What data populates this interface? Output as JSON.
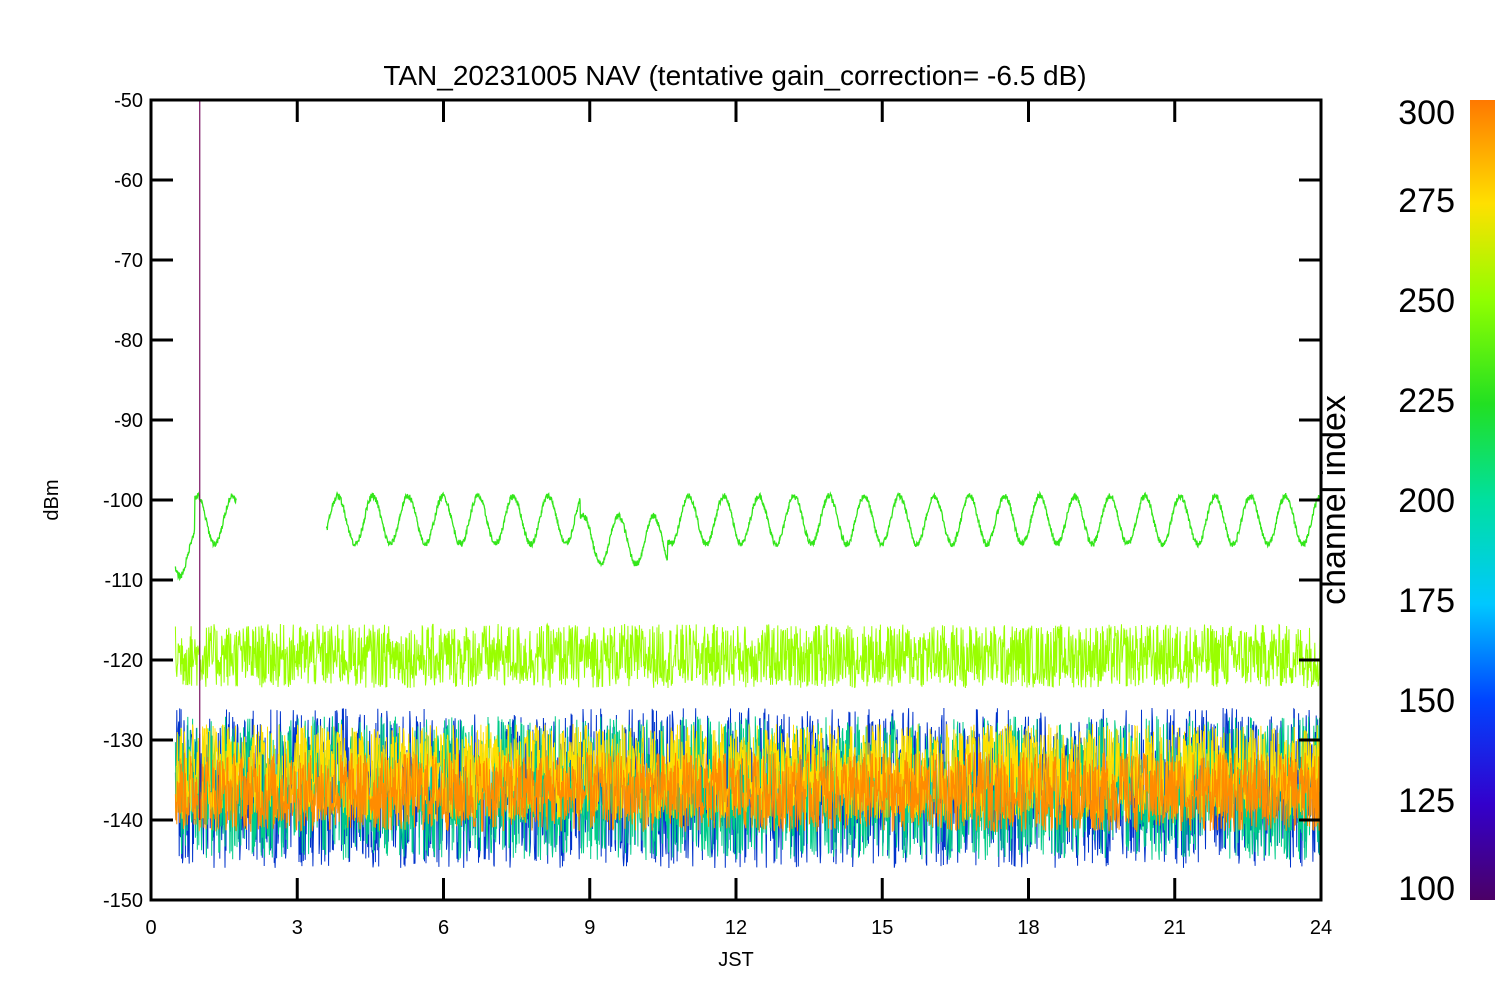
{
  "chart_data": {
    "type": "line",
    "title": "TAN_20231005 NAV (tentative gain_correction= -6.5 dB)",
    "xlabel": "JST",
    "ylabel": "dBm",
    "xlim": [
      0,
      24
    ],
    "ylim": [
      -150,
      -50
    ],
    "x_ticks": [
      "0",
      "3",
      "6",
      "9",
      "12",
      "15",
      "18",
      "21",
      "24"
    ],
    "y_ticks": [
      "-50",
      "-60",
      "-70",
      "-80",
      "-90",
      "-100",
      "-110",
      "-120",
      "-130",
      "-140",
      "-150"
    ],
    "grid": false,
    "colorbar": {
      "label": "channel index",
      "range": [
        100,
        300
      ],
      "ticks": [
        "300",
        "275",
        "250",
        "225",
        "200",
        "175",
        "150",
        "125",
        "100"
      ]
    },
    "series": [
      {
        "channel": 240,
        "color": "#33e61a",
        "x_start": 0.5,
        "x_end": 24,
        "baseline_dBm": -102.5,
        "amplitude_dB": 3,
        "period_h": 0.72,
        "gap": [
          1.75,
          3.6
        ]
      },
      {
        "channel": 260,
        "color": "#99ff00",
        "x_start": 0.5,
        "x_end": 24,
        "center_dBm": -119.5,
        "spread_dB": 4
      },
      {
        "channel": 280,
        "color": "#ffe000",
        "x_start": 0.5,
        "x_end": 24,
        "center_dBm": -134,
        "spread_dB": 6
      },
      {
        "channel": 295,
        "color": "#ff8c00",
        "x_start": 0.5,
        "x_end": 24,
        "center_dBm": -136.5,
        "spread_dB": 5
      },
      {
        "channel": 150,
        "color": "#0033cc",
        "x_start": 0.5,
        "x_end": 24,
        "center_dBm": -136,
        "spread_dB": 10
      },
      {
        "channel": 200,
        "color": "#00cc88",
        "x_start": 0.5,
        "x_end": 24,
        "center_dBm": -136,
        "spread_dB": 9
      }
    ],
    "annotations": [
      {
        "type": "spike",
        "x": 1.0,
        "y_top": -50,
        "color": "#7a1060"
      }
    ]
  }
}
